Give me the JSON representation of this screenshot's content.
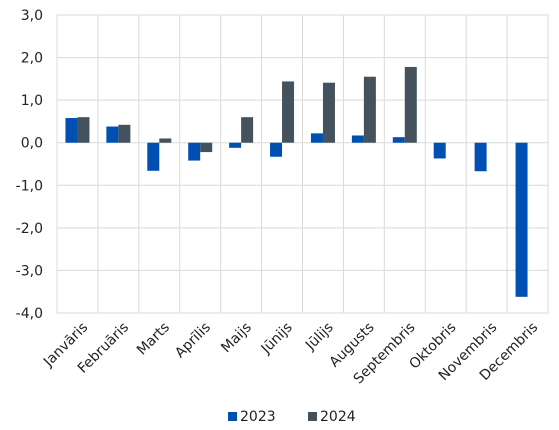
{
  "chart_data": {
    "type": "bar",
    "categories": [
      "Janvāris",
      "Februāris",
      "Marts",
      "Aprīlis",
      "Maijs",
      "Jūnijs",
      "Jūlijs",
      "Augusts",
      "Septembris",
      "Oktobris",
      "Novembris",
      "Decembris"
    ],
    "series": [
      {
        "name": "2023",
        "color": "#0050b4",
        "values": [
          0.58,
          0.38,
          -0.66,
          -0.42,
          -0.12,
          -0.33,
          0.22,
          0.17,
          0.13,
          -0.37,
          -0.67,
          -3.62
        ]
      },
      {
        "name": "2024",
        "color": "#44525d",
        "values": [
          0.6,
          0.42,
          0.1,
          -0.22,
          0.6,
          1.44,
          1.41,
          1.55,
          1.78,
          null,
          null,
          null
        ]
      }
    ],
    "y_ticks": [
      "3,0",
      "2,0",
      "1,0",
      "0,0",
      "-1,0",
      "-2,0",
      "-3,0",
      "-4,0"
    ],
    "ylim": [
      -4,
      3
    ],
    "grid": "both",
    "legend": "bottom"
  }
}
